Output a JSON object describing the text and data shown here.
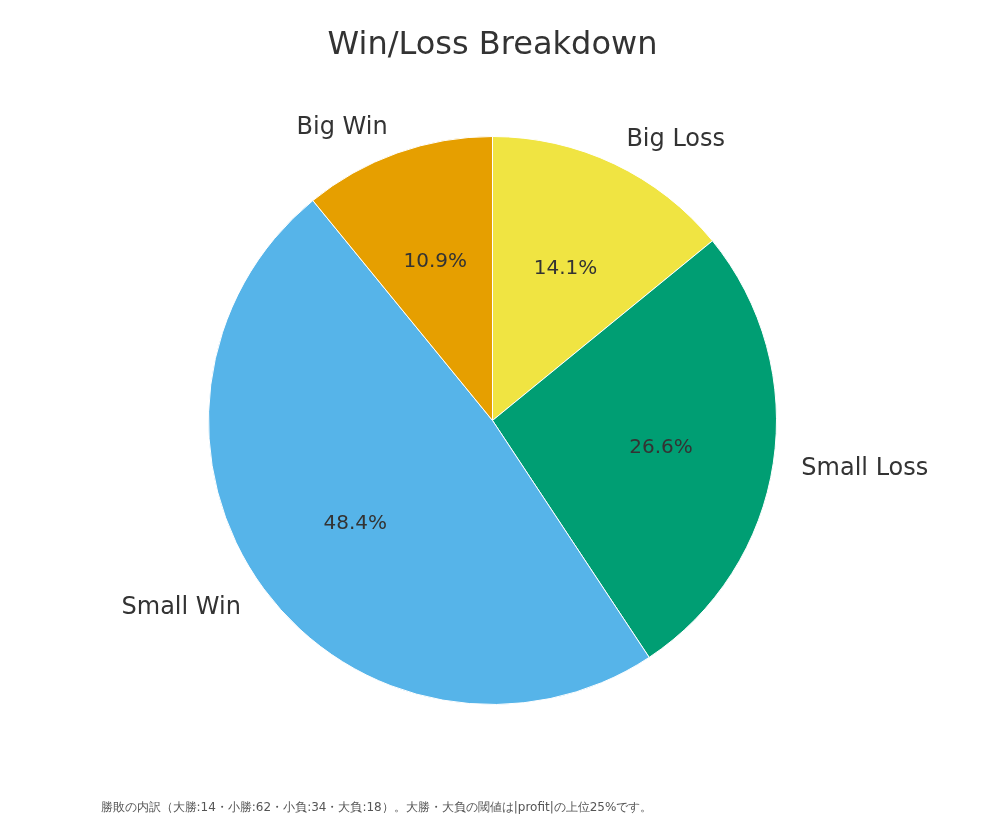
{
  "chart_data": {
    "type": "pie",
    "title": "Win/Loss Breakdown",
    "categories": [
      "Big Loss",
      "Small Loss",
      "Small Win",
      "Big Win"
    ],
    "values": [
      14.1,
      26.6,
      48.4,
      10.9
    ],
    "colors": [
      "#f0e442",
      "#009e73",
      "#56b4e9",
      "#e69f00"
    ],
    "value_labels": [
      "14.1%",
      "26.6%",
      "48.4%",
      "10.9%"
    ],
    "annotations": [
      "勝敗の内訳（大勝:14・小勝:62・小負:34・大負:18）。大勝・大負の閾値は|profit|の上位25%です。"
    ]
  }
}
